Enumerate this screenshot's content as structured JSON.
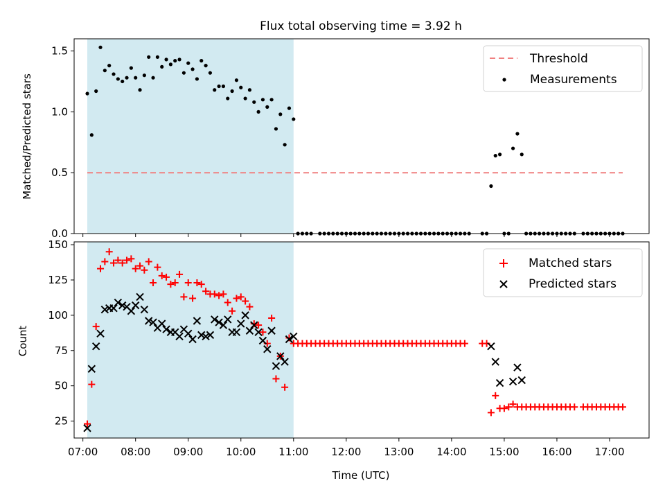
{
  "chart_data": [
    {
      "type": "scatter",
      "title": "Flux total observing time = 3.92 h",
      "xlabel": "",
      "ylabel": "Matched/Predicted stars",
      "xlim": [
        "06:50",
        "17:45"
      ],
      "ylim": [
        0,
        1.6
      ],
      "yticks": [
        0.0,
        0.5,
        1.0,
        1.5
      ],
      "ytick_labels": [
        "0.0",
        "0.5",
        "1.0",
        "1.5"
      ],
      "shaded_span": {
        "from": "07:05",
        "to": "11:00",
        "color": "#add8e6"
      },
      "threshold": {
        "name": "Threshold",
        "value": 0.5,
        "from": "07:05",
        "to": "17:15",
        "color": "#f08080",
        "style": "dashed"
      },
      "legend": {
        "placement": "upper right",
        "entries": [
          "Threshold",
          "Measurements"
        ]
      },
      "series": [
        {
          "name": "Measurements",
          "color": "#000000",
          "marker": "dot",
          "x": [
            "07:05",
            "07:10",
            "07:15",
            "07:20",
            "07:25",
            "07:30",
            "07:35",
            "07:40",
            "07:45",
            "07:50",
            "07:55",
            "08:00",
            "08:05",
            "08:10",
            "08:15",
            "08:20",
            "08:25",
            "08:30",
            "08:35",
            "08:40",
            "08:45",
            "08:50",
            "08:55",
            "09:00",
            "09:05",
            "09:10",
            "09:15",
            "09:20",
            "09:25",
            "09:30",
            "09:35",
            "09:40",
            "09:45",
            "09:50",
            "09:55",
            "10:00",
            "10:05",
            "10:10",
            "10:15",
            "10:20",
            "10:25",
            "10:30",
            "10:35",
            "10:40",
            "10:45",
            "10:50",
            "10:55",
            "11:00",
            "11:05",
            "11:10",
            "11:15",
            "11:20",
            "11:30",
            "11:35",
            "11:40",
            "11:45",
            "11:50",
            "11:55",
            "12:00",
            "12:05",
            "12:10",
            "12:15",
            "12:20",
            "12:25",
            "12:30",
            "12:35",
            "12:40",
            "12:45",
            "12:50",
            "12:55",
            "13:00",
            "13:05",
            "13:10",
            "13:15",
            "13:20",
            "13:25",
            "13:30",
            "13:35",
            "13:40",
            "13:45",
            "13:50",
            "13:55",
            "14:00",
            "14:05",
            "14:10",
            "14:15",
            "14:20",
            "14:35",
            "14:40",
            "14:45",
            "14:50",
            "14:55",
            "15:00",
            "15:05",
            "15:10",
            "15:15",
            "15:20",
            "15:25",
            "15:30",
            "15:35",
            "15:40",
            "15:45",
            "15:50",
            "15:55",
            "16:00",
            "16:05",
            "16:10",
            "16:15",
            "16:20",
            "16:30",
            "16:35",
            "16:40",
            "16:45",
            "16:50",
            "16:55",
            "17:00",
            "17:05",
            "17:10",
            "17:15"
          ],
          "y": [
            1.15,
            0.81,
            1.17,
            1.53,
            1.34,
            1.38,
            1.31,
            1.27,
            1.25,
            1.28,
            1.36,
            1.28,
            1.18,
            1.3,
            1.45,
            1.28,
            1.45,
            1.37,
            1.43,
            1.39,
            1.42,
            1.43,
            1.32,
            1.4,
            1.35,
            1.27,
            1.42,
            1.38,
            1.32,
            1.18,
            1.21,
            1.21,
            1.11,
            1.17,
            1.26,
            1.2,
            1.11,
            1.18,
            1.08,
            1.0,
            1.1,
            1.04,
            1.1,
            0.86,
            0.98,
            0.73,
            1.03,
            0.94,
            0,
            0,
            0,
            0,
            0,
            0,
            0,
            0,
            0,
            0,
            0,
            0,
            0,
            0,
            0,
            0,
            0,
            0,
            0,
            0,
            0,
            0,
            0,
            0,
            0,
            0,
            0,
            0,
            0,
            0,
            0,
            0,
            0,
            0,
            0,
            0,
            0,
            0,
            0,
            0,
            0,
            0.39,
            0.64,
            0.65,
            0,
            0,
            0.7,
            0.82,
            0.65,
            0,
            0,
            0,
            0,
            0,
            0,
            0,
            0,
            0,
            0,
            0,
            0,
            0,
            0,
            0,
            0,
            0,
            0,
            0,
            0,
            0,
            0
          ]
        }
      ]
    },
    {
      "type": "scatter",
      "title": "",
      "xlabel": "Time (UTC)",
      "ylabel": "Count",
      "xlim": [
        "06:50",
        "17:45"
      ],
      "ylim": [
        13,
        152
      ],
      "yticks": [
        25,
        50,
        75,
        100,
        125,
        150
      ],
      "ytick_labels": [
        "25",
        "50",
        "75",
        "100",
        "125",
        "150"
      ],
      "xticks": [
        "07:00",
        "08:00",
        "09:00",
        "10:00",
        "11:00",
        "12:00",
        "13:00",
        "14:00",
        "15:00",
        "16:00",
        "17:00"
      ],
      "shaded_span": {
        "from": "07:05",
        "to": "11:00",
        "color": "#add8e6"
      },
      "legend": {
        "placement": "upper right",
        "entries": [
          "Matched stars",
          "Predicted stars"
        ]
      },
      "series": [
        {
          "name": "Matched stars",
          "color": "#ff0000",
          "marker": "plus",
          "x": [
            "07:05",
            "07:10",
            "07:15",
            "07:20",
            "07:25",
            "07:30",
            "07:35",
            "07:40",
            "07:45",
            "07:50",
            "07:55",
            "08:00",
            "08:05",
            "08:10",
            "08:15",
            "08:20",
            "08:25",
            "08:30",
            "08:35",
            "08:40",
            "08:45",
            "08:50",
            "08:55",
            "09:00",
            "09:05",
            "09:10",
            "09:15",
            "09:20",
            "09:25",
            "09:30",
            "09:35",
            "09:40",
            "09:45",
            "09:50",
            "09:55",
            "10:00",
            "10:05",
            "10:10",
            "10:15",
            "10:20",
            "10:25",
            "10:30",
            "10:35",
            "10:40",
            "10:45",
            "10:50",
            "10:55",
            "11:00",
            "11:05",
            "11:10",
            "11:15",
            "11:20",
            "11:25",
            "11:30",
            "11:35",
            "11:40",
            "11:45",
            "11:50",
            "11:55",
            "12:00",
            "12:05",
            "12:10",
            "12:15",
            "12:20",
            "12:25",
            "12:30",
            "12:35",
            "12:40",
            "12:45",
            "12:50",
            "12:55",
            "13:00",
            "13:05",
            "13:10",
            "13:15",
            "13:20",
            "13:25",
            "13:30",
            "13:35",
            "13:40",
            "13:45",
            "13:50",
            "13:55",
            "14:00",
            "14:05",
            "14:10",
            "14:15",
            "14:35",
            "14:40",
            "14:45",
            "14:50",
            "14:55",
            "15:00",
            "15:05",
            "15:10",
            "15:15",
            "15:20",
            "15:25",
            "15:30",
            "15:35",
            "15:40",
            "15:45",
            "15:50",
            "15:55",
            "16:00",
            "16:05",
            "16:10",
            "16:15",
            "16:20",
            "16:30",
            "16:35",
            "16:40",
            "16:45",
            "16:50",
            "16:55",
            "17:00",
            "17:05",
            "17:10",
            "17:15"
          ],
          "y": [
            23,
            51,
            92,
            133,
            138,
            145,
            137,
            139,
            137,
            139,
            140,
            133,
            135,
            132,
            138,
            123,
            134,
            128,
            127,
            122,
            123,
            129,
            113,
            123,
            112,
            123,
            122,
            117,
            115,
            115,
            114,
            115,
            109,
            103,
            112,
            113,
            110,
            106,
            94,
            93,
            88,
            80,
            98,
            55,
            71,
            49,
            84,
            80,
            80,
            80,
            80,
            80,
            80,
            80,
            80,
            80,
            80,
            80,
            80,
            80,
            80,
            80,
            80,
            80,
            80,
            80,
            80,
            80,
            80,
            80,
            80,
            80,
            80,
            80,
            80,
            80,
            80,
            80,
            80,
            80,
            80,
            80,
            80,
            80,
            80,
            80,
            80,
            80,
            80,
            31,
            43,
            34,
            34,
            35,
            37,
            35,
            35,
            35,
            35,
            35,
            35,
            35,
            35,
            35,
            35,
            35,
            35,
            35,
            35,
            35,
            35,
            35,
            35,
            35,
            35,
            35,
            35,
            35,
            35
          ]
        },
        {
          "name": "Predicted stars",
          "color": "#000000",
          "marker": "x",
          "x": [
            "07:05",
            "07:10",
            "07:15",
            "07:20",
            "07:25",
            "07:30",
            "07:35",
            "07:40",
            "07:45",
            "07:50",
            "07:55",
            "08:00",
            "08:05",
            "08:10",
            "08:15",
            "08:20",
            "08:25",
            "08:30",
            "08:35",
            "08:40",
            "08:45",
            "08:50",
            "08:55",
            "09:00",
            "09:05",
            "09:10",
            "09:15",
            "09:20",
            "09:25",
            "09:30",
            "09:35",
            "09:40",
            "09:45",
            "09:50",
            "09:55",
            "10:00",
            "10:05",
            "10:10",
            "10:15",
            "10:20",
            "10:25",
            "10:30",
            "10:35",
            "10:40",
            "10:45",
            "10:50",
            "10:55",
            "11:00",
            "14:45",
            "14:50",
            "14:55",
            "15:10",
            "15:15",
            "15:20"
          ],
          "y": [
            20,
            62,
            78,
            87,
            104,
            105,
            105,
            109,
            107,
            106,
            103,
            107,
            113,
            104,
            96,
            95,
            91,
            94,
            90,
            88,
            88,
            85,
            90,
            87,
            83,
            96,
            86,
            85,
            86,
            97,
            95,
            93,
            97,
            88,
            88,
            94,
            100,
            89,
            93,
            88,
            82,
            76,
            89,
            64,
            71,
            67,
            83,
            85,
            78,
            67,
            52,
            53,
            63,
            54
          ]
        }
      ]
    }
  ]
}
